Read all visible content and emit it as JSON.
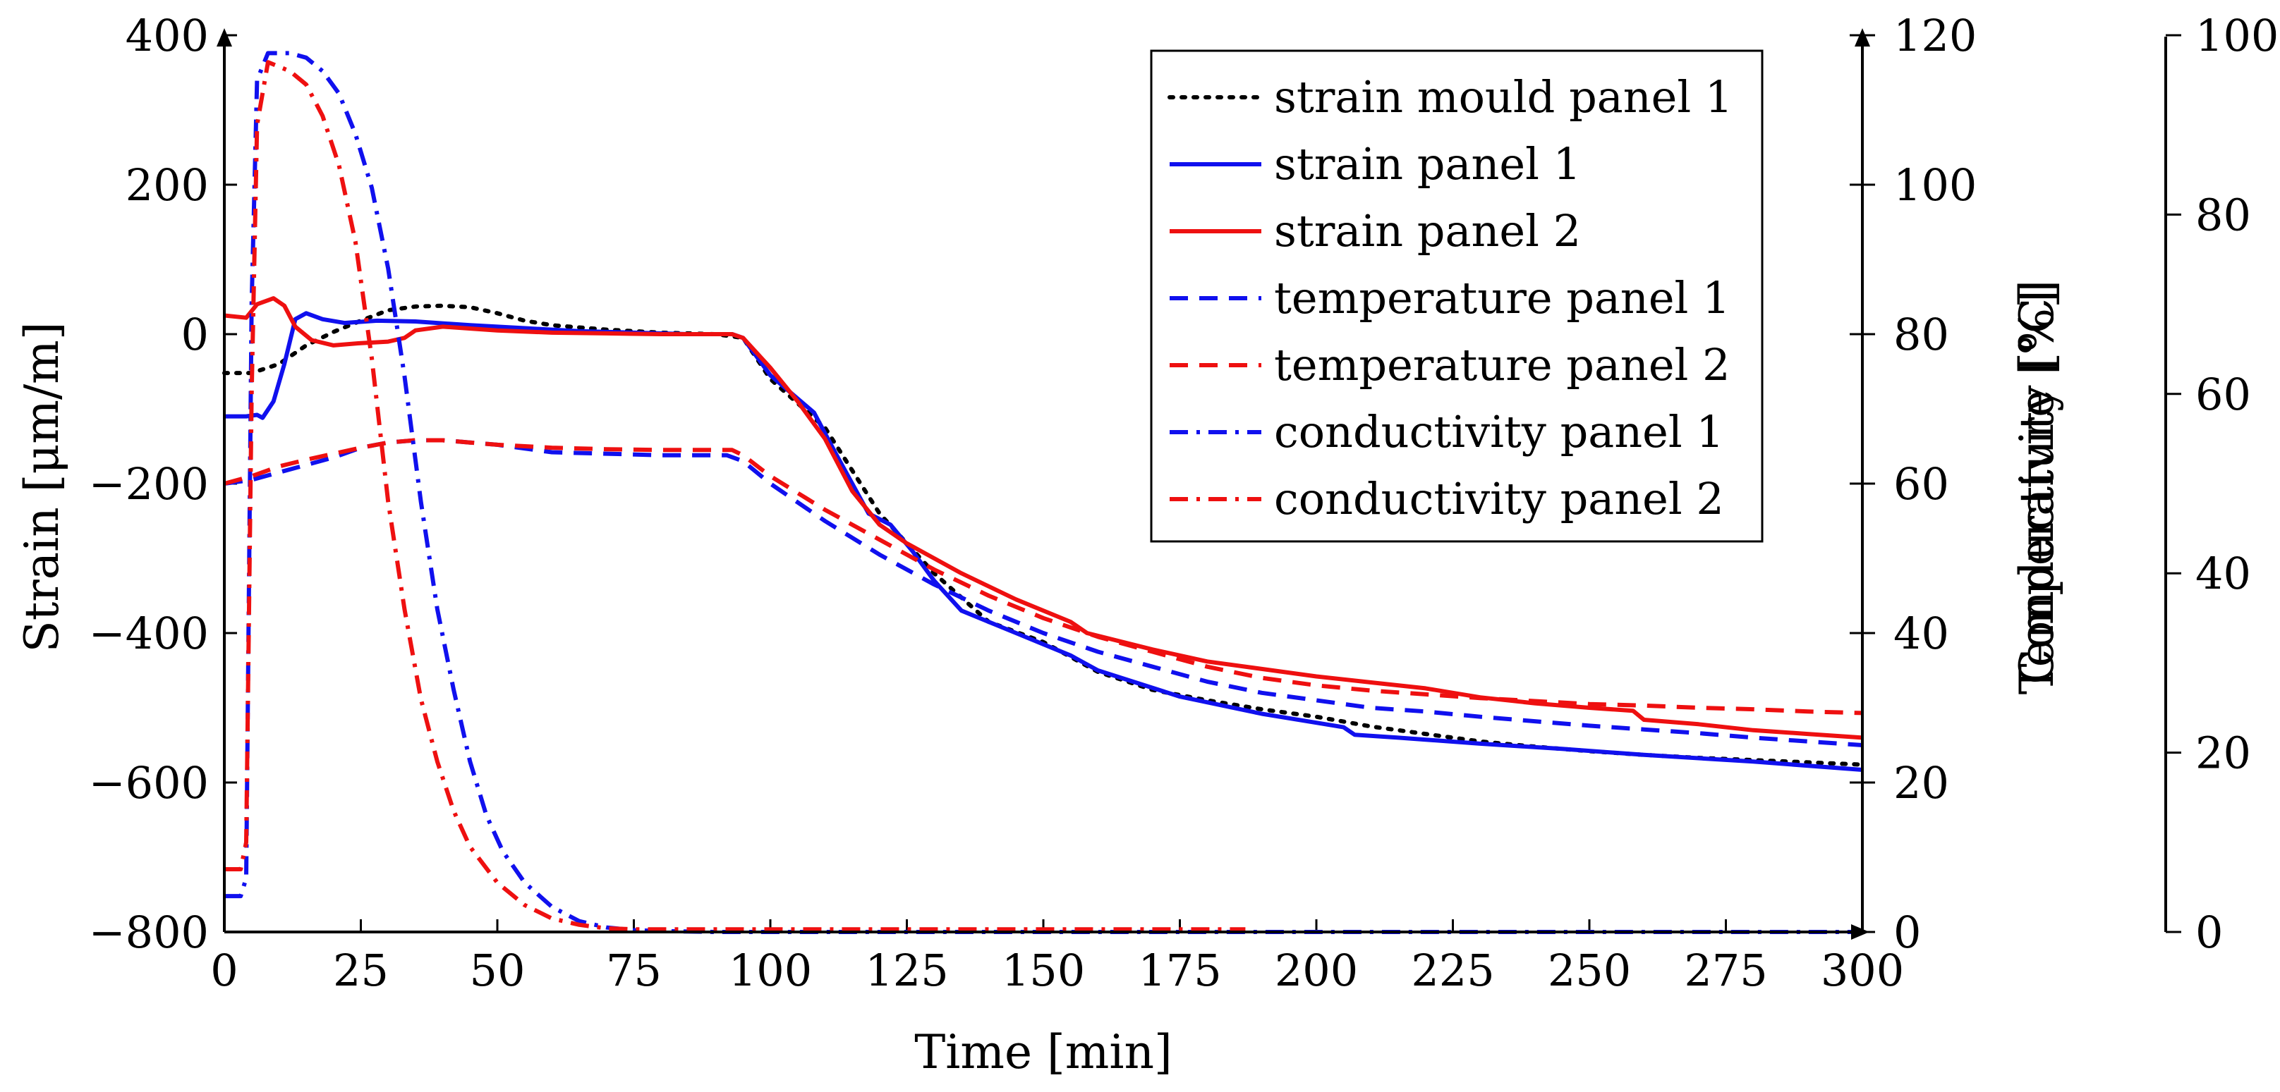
{
  "chart_data": {
    "type": "line",
    "title": "",
    "xlabel": "Time [min]",
    "ylabel": "Strain [μm/m]",
    "y2label": "Temperature [°C]",
    "y3label": "Conductivity [%]",
    "y2label_overlap": "Conductivity [%]",
    "xlim": [
      0,
      300
    ],
    "ylim": [
      -800,
      400
    ],
    "y2lim": [
      0,
      120
    ],
    "y3lim": [
      0,
      100
    ],
    "x_ticks": [
      "0",
      "25",
      "50",
      "75",
      "100",
      "125",
      "150",
      "175",
      "200",
      "225",
      "250",
      "275",
      "300"
    ],
    "y_ticks": [
      "−800",
      "−600",
      "−400",
      "−200",
      "0",
      "200",
      "400"
    ],
    "y2_ticks": [
      "0",
      "20",
      "40",
      "60",
      "80",
      "100",
      "120"
    ],
    "y3_ticks": [
      "0",
      "20",
      "40",
      "60",
      "80",
      "100"
    ],
    "legend_position": "top-right",
    "series": [
      {
        "name": "strain mould panel 1",
        "axis": "strain",
        "color": "#000000",
        "dash": "dotted",
        "points": [
          [
            0,
            -52
          ],
          [
            5,
            -52
          ],
          [
            10,
            -40
          ],
          [
            15,
            -15
          ],
          [
            20,
            3
          ],
          [
            25,
            18
          ],
          [
            30,
            32
          ],
          [
            35,
            37
          ],
          [
            40,
            38
          ],
          [
            45,
            36
          ],
          [
            50,
            28
          ],
          [
            55,
            18
          ],
          [
            60,
            12
          ],
          [
            70,
            6
          ],
          [
            80,
            2
          ],
          [
            90,
            0
          ],
          [
            95,
            -5
          ],
          [
            100,
            -60
          ],
          [
            110,
            -125
          ],
          [
            120,
            -240
          ],
          [
            130,
            -320
          ],
          [
            140,
            -385
          ],
          [
            150,
            -412
          ],
          [
            160,
            -452
          ],
          [
            170,
            -476
          ],
          [
            180,
            -490
          ],
          [
            190,
            -502
          ],
          [
            200,
            -512
          ],
          [
            210,
            -525
          ],
          [
            220,
            -535
          ],
          [
            230,
            -545
          ],
          [
            240,
            -552
          ],
          [
            250,
            -558
          ],
          [
            260,
            -563
          ],
          [
            270,
            -567
          ],
          [
            280,
            -570
          ],
          [
            290,
            -573
          ],
          [
            300,
            -576
          ]
        ]
      },
      {
        "name": "strain panel 1",
        "axis": "strain",
        "color": "#1010ee",
        "dash": "solid",
        "points": [
          [
            0,
            -110
          ],
          [
            4,
            -110
          ],
          [
            6,
            -108
          ],
          [
            7,
            -112
          ],
          [
            9,
            -90
          ],
          [
            11,
            -40
          ],
          [
            13,
            20
          ],
          [
            15,
            28
          ],
          [
            18,
            20
          ],
          [
            22,
            15
          ],
          [
            28,
            18
          ],
          [
            35,
            17
          ],
          [
            45,
            12
          ],
          [
            55,
            8
          ],
          [
            65,
            4
          ],
          [
            75,
            2
          ],
          [
            85,
            0
          ],
          [
            93,
            0
          ],
          [
            95,
            -5
          ],
          [
            100,
            -55
          ],
          [
            108,
            -105
          ],
          [
            112,
            -160
          ],
          [
            118,
            -240
          ],
          [
            122,
            -255
          ],
          [
            126,
            -290
          ],
          [
            130,
            -330
          ],
          [
            135,
            -370
          ],
          [
            145,
            -400
          ],
          [
            155,
            -430
          ],
          [
            160,
            -450
          ],
          [
            175,
            -485
          ],
          [
            190,
            -508
          ],
          [
            200,
            -520
          ],
          [
            205,
            -526
          ],
          [
            207,
            -536
          ],
          [
            215,
            -540
          ],
          [
            230,
            -548
          ],
          [
            245,
            -555
          ],
          [
            260,
            -563
          ],
          [
            280,
            -572
          ],
          [
            300,
            -583
          ]
        ]
      },
      {
        "name": "strain panel 2",
        "axis": "strain",
        "color": "#ee1010",
        "dash": "solid",
        "points": [
          [
            0,
            25
          ],
          [
            4,
            22
          ],
          [
            6,
            40
          ],
          [
            9,
            48
          ],
          [
            11,
            38
          ],
          [
            13,
            10
          ],
          [
            16,
            -8
          ],
          [
            20,
            -15
          ],
          [
            25,
            -12
          ],
          [
            30,
            -10
          ],
          [
            33,
            -5
          ],
          [
            35,
            5
          ],
          [
            40,
            10
          ],
          [
            50,
            5
          ],
          [
            60,
            2
          ],
          [
            70,
            1
          ],
          [
            80,
            0
          ],
          [
            93,
            0
          ],
          [
            95,
            -5
          ],
          [
            100,
            -45
          ],
          [
            105,
            -90
          ],
          [
            110,
            -140
          ],
          [
            115,
            -210
          ],
          [
            120,
            -255
          ],
          [
            125,
            -280
          ],
          [
            130,
            -300
          ],
          [
            135,
            -320
          ],
          [
            145,
            -355
          ],
          [
            155,
            -385
          ],
          [
            158,
            -400
          ],
          [
            170,
            -422
          ],
          [
            180,
            -438
          ],
          [
            190,
            -448
          ],
          [
            200,
            -458
          ],
          [
            210,
            -466
          ],
          [
            220,
            -474
          ],
          [
            230,
            -486
          ],
          [
            240,
            -494
          ],
          [
            250,
            -500
          ],
          [
            258,
            -504
          ],
          [
            260,
            -516
          ],
          [
            270,
            -522
          ],
          [
            280,
            -530
          ],
          [
            290,
            -535
          ],
          [
            300,
            -540
          ]
        ]
      },
      {
        "name": "temperature panel 1",
        "axis": "temperature",
        "color": "#1010ee",
        "dash": "dashed",
        "points": [
          [
            0,
            60
          ],
          [
            5,
            60.5
          ],
          [
            10,
            61.5
          ],
          [
            15,
            62.5
          ],
          [
            20,
            63.5
          ],
          [
            25,
            64.8
          ],
          [
            30,
            65.5
          ],
          [
            35,
            65.8
          ],
          [
            40,
            65.8
          ],
          [
            45,
            65.5
          ],
          [
            50,
            65.2
          ],
          [
            60,
            64.2
          ],
          [
            70,
            64
          ],
          [
            80,
            63.8
          ],
          [
            92,
            63.8
          ],
          [
            95,
            63
          ],
          [
            100,
            60
          ],
          [
            110,
            55
          ],
          [
            120,
            50.5
          ],
          [
            130,
            46.5
          ],
          [
            140,
            43
          ],
          [
            150,
            40
          ],
          [
            160,
            37.5
          ],
          [
            170,
            35.5
          ],
          [
            180,
            33.5
          ],
          [
            190,
            32
          ],
          [
            200,
            31
          ],
          [
            210,
            30
          ],
          [
            220,
            29.5
          ],
          [
            230,
            28.8
          ],
          [
            240,
            28.2
          ],
          [
            250,
            27.6
          ],
          [
            260,
            27.1
          ],
          [
            270,
            26.6
          ],
          [
            280,
            26
          ],
          [
            290,
            25.5
          ],
          [
            300,
            25
          ]
        ]
      },
      {
        "name": "temperature panel 2",
        "axis": "temperature",
        "color": "#ee1010",
        "dash": "dashed",
        "points": [
          [
            0,
            60
          ],
          [
            5,
            61
          ],
          [
            10,
            62.3
          ],
          [
            15,
            63.2
          ],
          [
            20,
            64
          ],
          [
            25,
            64.8
          ],
          [
            30,
            65.5
          ],
          [
            35,
            65.8
          ],
          [
            40,
            65.8
          ],
          [
            45,
            65.5
          ],
          [
            50,
            65.2
          ],
          [
            60,
            64.8
          ],
          [
            70,
            64.6
          ],
          [
            80,
            64.5
          ],
          [
            93,
            64.5
          ],
          [
            95,
            63.8
          ],
          [
            100,
            61
          ],
          [
            110,
            56.5
          ],
          [
            120,
            52.5
          ],
          [
            130,
            48.5
          ],
          [
            140,
            45
          ],
          [
            150,
            42
          ],
          [
            160,
            39.5
          ],
          [
            170,
            37.5
          ],
          [
            180,
            35.5
          ],
          [
            190,
            34
          ],
          [
            200,
            33
          ],
          [
            210,
            32.3
          ],
          [
            220,
            31.8
          ],
          [
            230,
            31.3
          ],
          [
            240,
            30.9
          ],
          [
            250,
            30.5
          ],
          [
            260,
            30.3
          ],
          [
            270,
            30
          ],
          [
            280,
            29.8
          ],
          [
            290,
            29.5
          ],
          [
            300,
            29.3
          ]
        ]
      },
      {
        "name": "conductivity panel 1",
        "axis": "conductivity",
        "color": "#1010ee",
        "dash": "dashdot",
        "points": [
          [
            0,
            4
          ],
          [
            3,
            4
          ],
          [
            4,
            6
          ],
          [
            5,
            70
          ],
          [
            6,
            95
          ],
          [
            8,
            98
          ],
          [
            12,
            98
          ],
          [
            15,
            97.5
          ],
          [
            18,
            96
          ],
          [
            21,
            93.5
          ],
          [
            24,
            89
          ],
          [
            27,
            83
          ],
          [
            30,
            74
          ],
          [
            33,
            62
          ],
          [
            36,
            48
          ],
          [
            39,
            36
          ],
          [
            42,
            27
          ],
          [
            45,
            19
          ],
          [
            48,
            13
          ],
          [
            51,
            9
          ],
          [
            55,
            5.5
          ],
          [
            60,
            2.8
          ],
          [
            65,
            1.2
          ],
          [
            70,
            0.5
          ],
          [
            75,
            0.2
          ],
          [
            80,
            0.1
          ],
          [
            90,
            0
          ],
          [
            150,
            0
          ],
          [
            300,
            0
          ]
        ]
      },
      {
        "name": "conductivity panel 2",
        "axis": "conductivity",
        "color": "#ee1010",
        "dash": "dashdot",
        "points": [
          [
            0,
            7
          ],
          [
            3,
            7
          ],
          [
            4,
            10
          ],
          [
            5,
            60
          ],
          [
            6,
            90
          ],
          [
            8,
            97
          ],
          [
            12,
            96
          ],
          [
            15,
            94.5
          ],
          [
            18,
            91
          ],
          [
            21,
            85.5
          ],
          [
            24,
            77
          ],
          [
            27,
            64
          ],
          [
            30,
            48
          ],
          [
            33,
            36
          ],
          [
            36,
            26
          ],
          [
            39,
            19
          ],
          [
            42,
            13.5
          ],
          [
            45,
            9.5
          ],
          [
            50,
            5.5
          ],
          [
            55,
            3
          ],
          [
            60,
            1.5
          ],
          [
            65,
            0.8
          ],
          [
            70,
            0.4
          ],
          [
            75,
            0.3
          ],
          [
            80,
            0.3
          ],
          [
            100,
            0.3
          ],
          [
            150,
            0.3
          ],
          [
            187,
            0.3
          ]
        ]
      }
    ]
  }
}
